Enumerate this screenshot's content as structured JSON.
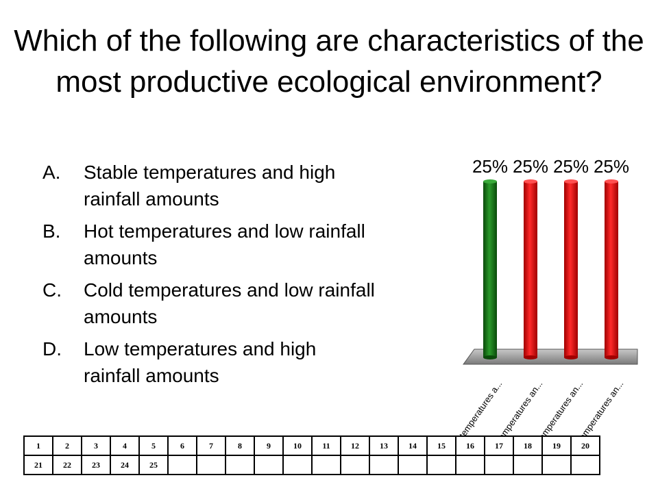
{
  "title": "Which of the following are characteristics of the most productive ecological environment?",
  "answers": [
    {
      "letter": "A.",
      "text": "Stable temperatures and high rainfall amounts"
    },
    {
      "letter": "B.",
      "text": "Hot temperatures and low rainfall amounts"
    },
    {
      "letter": "C.",
      "text": "Cold temperatures and low rainfall amounts"
    },
    {
      "letter": "D.",
      "text": "Low temperatures and high rainfall amounts"
    }
  ],
  "chart_data": {
    "type": "bar",
    "categories": [
      "Stable temperatures a...",
      "Hot temperatures an...",
      "Cold temperatures an...",
      "Low temperatures an..."
    ],
    "values": [
      25,
      25,
      25,
      25
    ],
    "data_labels": [
      "25%",
      "25%",
      "25%",
      "25%"
    ],
    "bar_colors": [
      "#1a7a1a",
      "#e81010",
      "#e81010",
      "#e81010"
    ],
    "ylim": [
      0,
      25
    ],
    "grid": false,
    "three_d": true
  },
  "response_grid": {
    "rows": [
      [
        "1",
        "2",
        "3",
        "4",
        "5",
        "6",
        "7",
        "8",
        "9",
        "10",
        "11",
        "12",
        "13",
        "14",
        "15",
        "16",
        "17",
        "18",
        "19",
        "20"
      ],
      [
        "21",
        "22",
        "23",
        "24",
        "25",
        "",
        "",
        "",
        "",
        "",
        "",
        "",
        "",
        "",
        "",
        "",
        "",
        "",
        "",
        ""
      ]
    ]
  }
}
